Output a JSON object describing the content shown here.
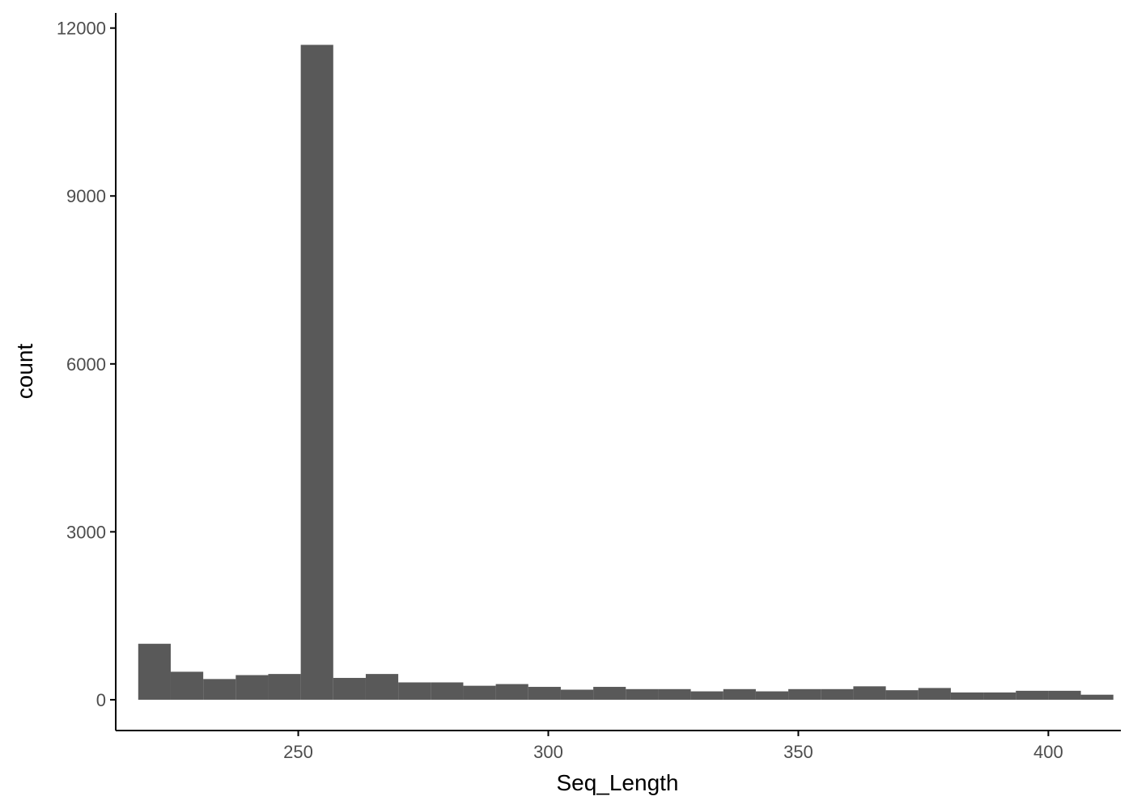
{
  "chart_data": {
    "type": "bar",
    "subtype": "histogram",
    "title": "",
    "xlabel": "Seq_Length",
    "ylabel": "count",
    "xlim": [
      213.5,
      414.5
    ],
    "ylim": [
      -550,
      12270
    ],
    "x_ticks": [
      250,
      300,
      350,
      400
    ],
    "y_ticks": [
      0,
      3000,
      6000,
      9000,
      12000
    ],
    "x_tick_labels": [
      "250",
      "300",
      "350",
      "400"
    ],
    "y_tick_labels": [
      "0",
      "3000",
      "6000",
      "9000",
      "12000"
    ],
    "bin_width": 6.5,
    "bins": [
      {
        "x_start": 218.0,
        "x_end": 224.5,
        "count": 1000
      },
      {
        "x_start": 224.5,
        "x_end": 231.0,
        "count": 500
      },
      {
        "x_start": 231.0,
        "x_end": 237.5,
        "count": 370
      },
      {
        "x_start": 237.5,
        "x_end": 244.0,
        "count": 440
      },
      {
        "x_start": 244.0,
        "x_end": 250.5,
        "count": 460
      },
      {
        "x_start": 250.5,
        "x_end": 257.0,
        "count": 11700
      },
      {
        "x_start": 257.0,
        "x_end": 263.5,
        "count": 390
      },
      {
        "x_start": 263.5,
        "x_end": 270.0,
        "count": 460
      },
      {
        "x_start": 270.0,
        "x_end": 276.5,
        "count": 310
      },
      {
        "x_start": 276.5,
        "x_end": 283.0,
        "count": 310
      },
      {
        "x_start": 283.0,
        "x_end": 289.5,
        "count": 250
      },
      {
        "x_start": 289.5,
        "x_end": 296.0,
        "count": 280
      },
      {
        "x_start": 296.0,
        "x_end": 302.5,
        "count": 230
      },
      {
        "x_start": 302.5,
        "x_end": 309.0,
        "count": 180
      },
      {
        "x_start": 309.0,
        "x_end": 315.5,
        "count": 230
      },
      {
        "x_start": 315.5,
        "x_end": 322.0,
        "count": 190
      },
      {
        "x_start": 322.0,
        "x_end": 328.5,
        "count": 190
      },
      {
        "x_start": 328.5,
        "x_end": 335.0,
        "count": 150
      },
      {
        "x_start": 335.0,
        "x_end": 341.5,
        "count": 190
      },
      {
        "x_start": 341.5,
        "x_end": 348.0,
        "count": 150
      },
      {
        "x_start": 348.0,
        "x_end": 354.5,
        "count": 190
      },
      {
        "x_start": 354.5,
        "x_end": 361.0,
        "count": 190
      },
      {
        "x_start": 361.0,
        "x_end": 367.5,
        "count": 240
      },
      {
        "x_start": 367.5,
        "x_end": 374.0,
        "count": 170
      },
      {
        "x_start": 374.0,
        "x_end": 380.5,
        "count": 210
      },
      {
        "x_start": 380.5,
        "x_end": 387.0,
        "count": 130
      },
      {
        "x_start": 387.0,
        "x_end": 393.5,
        "count": 130
      },
      {
        "x_start": 393.5,
        "x_end": 400.0,
        "count": 160
      },
      {
        "x_start": 400.0,
        "x_end": 406.5,
        "count": 160
      },
      {
        "x_start": 406.5,
        "x_end": 413.0,
        "count": 90
      }
    ],
    "grid": false,
    "legend": "none",
    "colors": {
      "bar": "#595959",
      "axis": "#000000",
      "tick_label": "#4d4d4d",
      "background": "#ffffff"
    }
  }
}
